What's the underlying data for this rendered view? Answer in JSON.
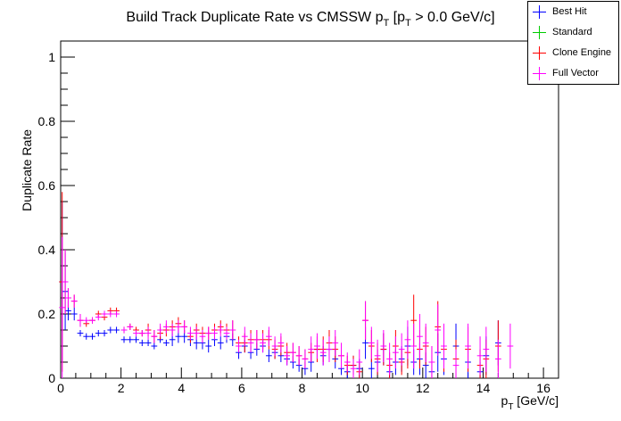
{
  "chart_data": {
    "type": "scatter",
    "title": "Build Track Duplicate Rate vs CMSSW p_T [p_T > 0.0 GeV/c]",
    "title_parts": {
      "main": "Build Track Duplicate Rate vs CMSSW p",
      "sub1": "T",
      "mid": " [p",
      "sub2": "T",
      "tail": " > 0.0 GeV/c]"
    },
    "xlabel_parts": {
      "main": "p",
      "sub": "T",
      "tail": " [GeV/c]"
    },
    "xlabel": "p_T [GeV/c]",
    "ylabel": "Duplicate Rate",
    "xlim": [
      0,
      16.5
    ],
    "ylim": [
      0,
      1.05
    ],
    "x_ticks": [
      "0",
      "2",
      "4",
      "6",
      "8",
      "10",
      "12",
      "14",
      "16"
    ],
    "y_ticks": [
      "0",
      "0.2",
      "0.4",
      "0.6",
      "0.8",
      "1"
    ],
    "grid": false,
    "legend_position": "top-right",
    "series": [
      {
        "name": "Best Hit",
        "color": "#0000ff",
        "points": [
          [
            0.05,
            0.3,
            0.25
          ],
          [
            0.15,
            0.27,
            0.12
          ],
          [
            0.25,
            0.21,
            0.03
          ],
          [
            0.45,
            0.2,
            0.02
          ],
          [
            0.65,
            0.14,
            0.01
          ],
          [
            0.85,
            0.13,
            0.01
          ],
          [
            1.05,
            0.13,
            0.01
          ],
          [
            1.25,
            0.14,
            0.01
          ],
          [
            1.45,
            0.14,
            0.01
          ],
          [
            1.65,
            0.15,
            0.01
          ],
          [
            1.85,
            0.15,
            0.01
          ],
          [
            2.1,
            0.12,
            0.01
          ],
          [
            2.3,
            0.12,
            0.01
          ],
          [
            2.5,
            0.12,
            0.01
          ],
          [
            2.7,
            0.11,
            0.01
          ],
          [
            2.9,
            0.11,
            0.01
          ],
          [
            3.1,
            0.1,
            0.01
          ],
          [
            3.3,
            0.12,
            0.01
          ],
          [
            3.5,
            0.11,
            0.01
          ],
          [
            3.7,
            0.12,
            0.02
          ],
          [
            3.9,
            0.13,
            0.02
          ],
          [
            4.1,
            0.13,
            0.02
          ],
          [
            4.3,
            0.12,
            0.02
          ],
          [
            4.5,
            0.11,
            0.02
          ],
          [
            4.7,
            0.11,
            0.02
          ],
          [
            4.9,
            0.1,
            0.02
          ],
          [
            5.1,
            0.12,
            0.02
          ],
          [
            5.3,
            0.11,
            0.02
          ],
          [
            5.5,
            0.13,
            0.02
          ],
          [
            5.7,
            0.12,
            0.02
          ],
          [
            5.9,
            0.08,
            0.02
          ],
          [
            6.1,
            0.1,
            0.02
          ],
          [
            6.3,
            0.08,
            0.02
          ],
          [
            6.5,
            0.09,
            0.02
          ],
          [
            6.7,
            0.1,
            0.02
          ],
          [
            6.9,
            0.07,
            0.02
          ],
          [
            7.1,
            0.08,
            0.02
          ],
          [
            7.3,
            0.07,
            0.02
          ],
          [
            7.5,
            0.06,
            0.02
          ],
          [
            7.7,
            0.05,
            0.02
          ],
          [
            7.9,
            0.04,
            0.02
          ],
          [
            8.1,
            0.03,
            0.02
          ],
          [
            8.3,
            0.05,
            0.03
          ],
          [
            8.5,
            0.09,
            0.03
          ],
          [
            8.7,
            0.07,
            0.03
          ],
          [
            8.9,
            0.09,
            0.03
          ],
          [
            9.1,
            0.06,
            0.03
          ],
          [
            9.3,
            0.03,
            0.02
          ],
          [
            9.5,
            0.02,
            0.02
          ],
          [
            9.7,
            0.04,
            0.03
          ],
          [
            9.9,
            0.03,
            0.03
          ],
          [
            10.1,
            0.11,
            0.05
          ],
          [
            10.3,
            0.03,
            0.03
          ],
          [
            10.5,
            0.05,
            0.04
          ],
          [
            10.7,
            0.09,
            0.05
          ],
          [
            10.9,
            0.02,
            0.03
          ],
          [
            11.1,
            0.05,
            0.04
          ],
          [
            11.3,
            0.06,
            0.04
          ],
          [
            11.5,
            0.1,
            0.06
          ],
          [
            11.7,
            0.05,
            0.04
          ],
          [
            11.9,
            0.06,
            0.05
          ],
          [
            12.1,
            0.04,
            0.04
          ],
          [
            12.3,
            0.02,
            0.03
          ],
          [
            12.5,
            0.08,
            0.06
          ],
          [
            12.7,
            0.06,
            0.05
          ],
          [
            13.1,
            0.1,
            0.07
          ],
          [
            13.5,
            0.05,
            0.05
          ],
          [
            13.9,
            0.02,
            0.03
          ],
          [
            14.1,
            0.07,
            0.06
          ],
          [
            14.5,
            0.11,
            0.07
          ]
        ]
      },
      {
        "name": "Standard",
        "color": "#00cc00",
        "points": []
      },
      {
        "name": "Clone Engine",
        "color": "#ff0000",
        "points": [
          [
            0.05,
            0.3,
            0.28
          ],
          [
            0.15,
            0.3,
            0.1
          ],
          [
            0.25,
            0.25,
            0.03
          ],
          [
            0.45,
            0.24,
            0.02
          ],
          [
            0.65,
            0.18,
            0.02
          ],
          [
            0.85,
            0.17,
            0.01
          ],
          [
            1.05,
            0.18,
            0.01
          ],
          [
            1.25,
            0.2,
            0.01
          ],
          [
            1.45,
            0.19,
            0.01
          ],
          [
            1.65,
            0.21,
            0.01
          ],
          [
            1.85,
            0.21,
            0.01
          ],
          [
            2.1,
            0.15,
            0.01
          ],
          [
            2.3,
            0.16,
            0.01
          ],
          [
            2.5,
            0.15,
            0.01
          ],
          [
            2.7,
            0.14,
            0.01
          ],
          [
            2.9,
            0.15,
            0.02
          ],
          [
            3.1,
            0.13,
            0.02
          ],
          [
            3.3,
            0.14,
            0.02
          ],
          [
            3.5,
            0.15,
            0.02
          ],
          [
            3.7,
            0.16,
            0.02
          ],
          [
            3.9,
            0.17,
            0.02
          ],
          [
            4.1,
            0.16,
            0.02
          ],
          [
            4.3,
            0.13,
            0.02
          ],
          [
            4.5,
            0.15,
            0.02
          ],
          [
            4.7,
            0.14,
            0.02
          ],
          [
            4.9,
            0.14,
            0.02
          ],
          [
            5.1,
            0.15,
            0.02
          ],
          [
            5.3,
            0.16,
            0.02
          ],
          [
            5.5,
            0.15,
            0.02
          ],
          [
            5.7,
            0.15,
            0.03
          ],
          [
            5.9,
            0.11,
            0.02
          ],
          [
            6.1,
            0.11,
            0.03
          ],
          [
            6.3,
            0.12,
            0.03
          ],
          [
            6.5,
            0.12,
            0.03
          ],
          [
            6.7,
            0.12,
            0.03
          ],
          [
            6.9,
            0.12,
            0.03
          ],
          [
            7.1,
            0.09,
            0.03
          ],
          [
            7.3,
            0.1,
            0.03
          ],
          [
            7.5,
            0.08,
            0.03
          ],
          [
            7.7,
            0.08,
            0.03
          ],
          [
            7.9,
            0.07,
            0.03
          ],
          [
            8.1,
            0.06,
            0.03
          ],
          [
            8.3,
            0.08,
            0.03
          ],
          [
            8.5,
            0.09,
            0.04
          ],
          [
            8.7,
            0.09,
            0.04
          ],
          [
            8.9,
            0.11,
            0.04
          ],
          [
            9.1,
            0.09,
            0.04
          ],
          [
            9.3,
            0.07,
            0.04
          ],
          [
            9.5,
            0.04,
            0.03
          ],
          [
            9.7,
            0.04,
            0.03
          ],
          [
            9.9,
            0.02,
            0.03
          ],
          [
            10.1,
            0.18,
            0.06
          ],
          [
            10.3,
            0.1,
            0.05
          ],
          [
            10.5,
            0.06,
            0.05
          ],
          [
            10.7,
            0.09,
            0.05
          ],
          [
            10.9,
            0.04,
            0.04
          ],
          [
            11.1,
            0.1,
            0.05
          ],
          [
            11.3,
            0.05,
            0.04
          ],
          [
            11.5,
            0.08,
            0.05
          ],
          [
            11.7,
            0.18,
            0.08
          ],
          [
            11.9,
            0.09,
            0.06
          ],
          [
            12.1,
            0.1,
            0.06
          ],
          [
            12.3,
            0.05,
            0.05
          ],
          [
            12.5,
            0.16,
            0.08
          ],
          [
            12.7,
            0.09,
            0.07
          ],
          [
            13.1,
            0.06,
            0.06
          ],
          [
            13.5,
            0.09,
            0.07
          ],
          [
            13.9,
            0.04,
            0.05
          ],
          [
            14.1,
            0.06,
            0.06
          ],
          [
            14.5,
            0.1,
            0.08
          ]
        ]
      },
      {
        "name": "Full Vector",
        "color": "#ff00ff",
        "points": [
          [
            0.05,
            0.22,
            0.22
          ],
          [
            0.15,
            0.3,
            0.1
          ],
          [
            0.25,
            0.25,
            0.03
          ],
          [
            0.45,
            0.24,
            0.02
          ],
          [
            0.65,
            0.18,
            0.02
          ],
          [
            0.85,
            0.18,
            0.01
          ],
          [
            1.05,
            0.18,
            0.01
          ],
          [
            1.25,
            0.19,
            0.01
          ],
          [
            1.45,
            0.2,
            0.01
          ],
          [
            1.65,
            0.2,
            0.01
          ],
          [
            1.85,
            0.2,
            0.01
          ],
          [
            2.1,
            0.15,
            0.01
          ],
          [
            2.3,
            0.16,
            0.01
          ],
          [
            2.5,
            0.14,
            0.01
          ],
          [
            2.7,
            0.14,
            0.01
          ],
          [
            2.9,
            0.14,
            0.02
          ],
          [
            3.1,
            0.13,
            0.02
          ],
          [
            3.3,
            0.15,
            0.02
          ],
          [
            3.5,
            0.16,
            0.02
          ],
          [
            3.7,
            0.15,
            0.02
          ],
          [
            3.9,
            0.16,
            0.02
          ],
          [
            4.1,
            0.16,
            0.02
          ],
          [
            4.3,
            0.14,
            0.02
          ],
          [
            4.5,
            0.14,
            0.02
          ],
          [
            4.7,
            0.13,
            0.02
          ],
          [
            4.9,
            0.14,
            0.02
          ],
          [
            5.1,
            0.14,
            0.02
          ],
          [
            5.3,
            0.15,
            0.02
          ],
          [
            5.5,
            0.14,
            0.02
          ],
          [
            5.7,
            0.15,
            0.03
          ],
          [
            5.9,
            0.1,
            0.02
          ],
          [
            6.1,
            0.13,
            0.03
          ],
          [
            6.3,
            0.11,
            0.03
          ],
          [
            6.5,
            0.12,
            0.03
          ],
          [
            6.7,
            0.11,
            0.03
          ],
          [
            6.9,
            0.13,
            0.03
          ],
          [
            7.1,
            0.1,
            0.03
          ],
          [
            7.3,
            0.11,
            0.03
          ],
          [
            7.5,
            0.07,
            0.03
          ],
          [
            7.7,
            0.08,
            0.03
          ],
          [
            7.9,
            0.07,
            0.03
          ],
          [
            8.1,
            0.06,
            0.03
          ],
          [
            8.3,
            0.09,
            0.04
          ],
          [
            8.5,
            0.1,
            0.04
          ],
          [
            8.7,
            0.08,
            0.04
          ],
          [
            8.9,
            0.09,
            0.04
          ],
          [
            9.1,
            0.11,
            0.04
          ],
          [
            9.3,
            0.07,
            0.04
          ],
          [
            9.5,
            0.05,
            0.03
          ],
          [
            9.7,
            0.03,
            0.03
          ],
          [
            9.9,
            0.05,
            0.04
          ],
          [
            10.1,
            0.18,
            0.06
          ],
          [
            10.3,
            0.11,
            0.05
          ],
          [
            10.5,
            0.07,
            0.05
          ],
          [
            10.7,
            0.1,
            0.05
          ],
          [
            10.9,
            0.06,
            0.05
          ],
          [
            11.1,
            0.08,
            0.05
          ],
          [
            11.3,
            0.09,
            0.05
          ],
          [
            11.5,
            0.12,
            0.06
          ],
          [
            11.7,
            0.1,
            0.07
          ],
          [
            11.9,
            0.13,
            0.07
          ],
          [
            12.1,
            0.11,
            0.06
          ],
          [
            12.3,
            0.05,
            0.05
          ],
          [
            12.5,
            0.15,
            0.08
          ],
          [
            12.7,
            0.1,
            0.07
          ],
          [
            13.1,
            0.04,
            0.05
          ],
          [
            13.5,
            0.1,
            0.07
          ],
          [
            13.9,
            0.07,
            0.06
          ],
          [
            14.1,
            0.09,
            0.07
          ],
          [
            14.5,
            0.06,
            0.06
          ],
          [
            14.9,
            0.1,
            0.07
          ]
        ]
      }
    ]
  }
}
